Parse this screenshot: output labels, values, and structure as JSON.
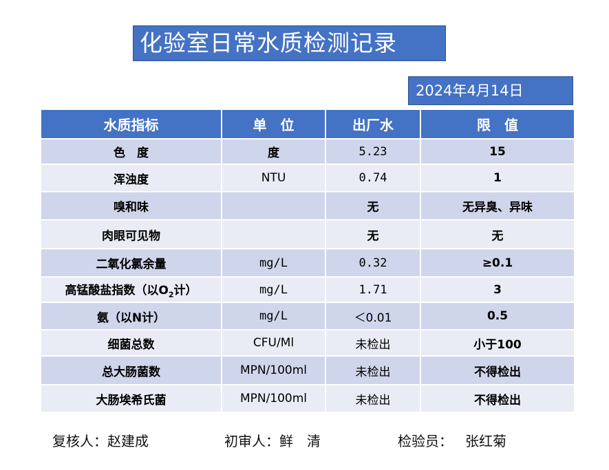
{
  "title": "化验室日常水质检测记录",
  "date": "2024年4月14日",
  "table": {
    "headers": [
      "水质指标",
      "单　位",
      "出厂水",
      "限　值"
    ],
    "rows": [
      {
        "name": "色　度",
        "unit": "度",
        "value": "5.23",
        "limit": "15"
      },
      {
        "name": "浑浊度",
        "unit": "NTU",
        "value": "0.74",
        "limit": "1"
      },
      {
        "name": "嗅和味",
        "unit": "",
        "value": "无",
        "limit": "无异臭、异味"
      },
      {
        "name": "肉眼可见物",
        "unit": "",
        "value": "无",
        "limit": "无"
      },
      {
        "name": "二氧化氯余量",
        "unit": "mg/L",
        "value": "0.32",
        "limit": "≥0.1"
      },
      {
        "name_prefix": "高锰酸盐指数（以O",
        "name_sub": "2",
        "name_suffix": "计）",
        "unit": "mg/L",
        "value": "1.71",
        "limit": "3"
      },
      {
        "name": "氨（以N计）",
        "unit": "mg/L",
        "value": "＜0.01",
        "limit": "0.5"
      },
      {
        "name": "细菌总数",
        "unit": "CFU/Ml",
        "value": "未检出",
        "limit": "小于100"
      },
      {
        "name": "总大肠菌数",
        "unit": "MPN/100ml",
        "value": "未检出",
        "limit": "不得检出"
      },
      {
        "name": "大肠埃希氏菌",
        "unit": "MPN/100ml",
        "value": "未检出",
        "limit": "不得检出"
      }
    ]
  },
  "footer": {
    "reviewer_label": "复核人：",
    "reviewer": "赵建成",
    "first_reviewer_label": "初审人：",
    "first_reviewer": "鲜　清",
    "inspector_label": "检验员：",
    "inspector": "张红菊"
  }
}
